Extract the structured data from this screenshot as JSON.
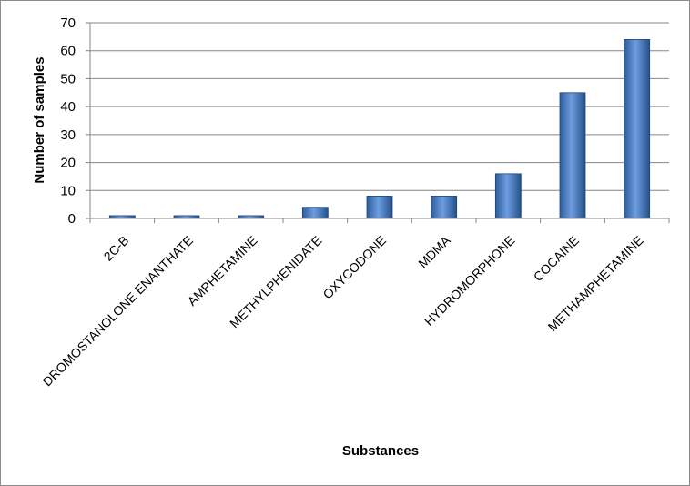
{
  "chart_data": {
    "type": "bar",
    "categories": [
      "2C-B",
      "DROMOSTANOLONE ENANTHATE",
      "AMPHETAMINE",
      "METHYLPHENIDATE",
      "OXYCODONE",
      "MDMA",
      "HYDROMORPHONE",
      "COCAINE",
      "METHAMPHETAMINE"
    ],
    "values": [
      1,
      1,
      1,
      4,
      8,
      8,
      16,
      45,
      64
    ],
    "title": "",
    "xlabel": "Substances",
    "ylabel": "Number of samples",
    "ylim": [
      0,
      70
    ],
    "yticks": [
      0,
      10,
      20,
      30,
      40,
      50,
      60,
      70
    ],
    "grid": true,
    "legend": "none",
    "colors": {
      "bar": "#4f81bd",
      "bar_dark": "#2c5d9b",
      "grid": "#868686"
    }
  }
}
